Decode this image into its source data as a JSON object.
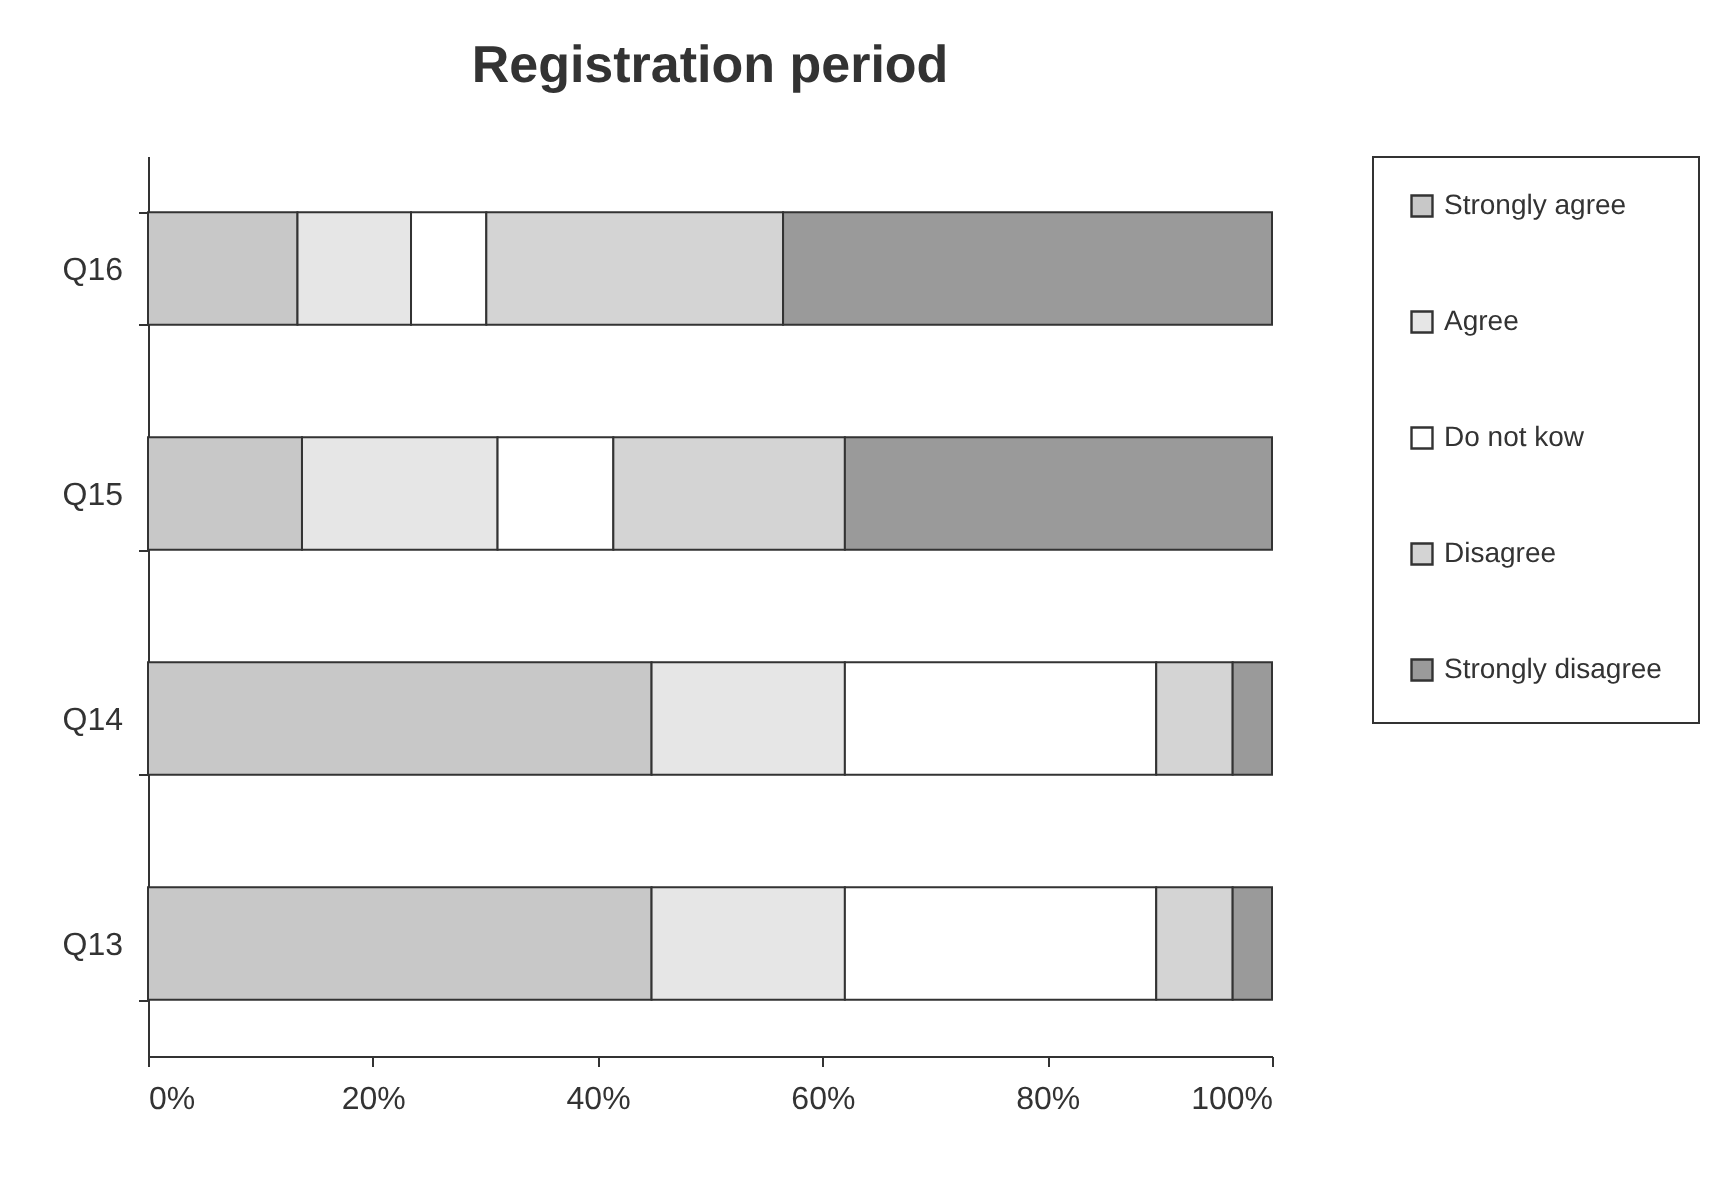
{
  "chart_data": {
    "type": "bar",
    "orientation": "horizontal",
    "stacked": true,
    "title": "Registration period",
    "categories": [
      "Q16",
      "Q15",
      "Q14",
      "Q13"
    ],
    "series": [
      {
        "name": "Strongly agree",
        "color": "#c8c8c8",
        "values": [
          13.3,
          13.7,
          44.8,
          44.8
        ]
      },
      {
        "name": "Agree",
        "color": "#e6e6e6",
        "values": [
          10.1,
          17.4,
          17.2,
          17.2
        ]
      },
      {
        "name": "Do not kow",
        "color": "#ffffff",
        "values": [
          6.7,
          10.3,
          27.7,
          27.7
        ]
      },
      {
        "name": "Disagree",
        "color": "#d4d4d4",
        "values": [
          26.4,
          20.6,
          6.8,
          6.8
        ]
      },
      {
        "name": "Strongly disagree",
        "color": "#9a9a9a",
        "values": [
          43.5,
          38.0,
          3.5,
          3.5
        ]
      }
    ],
    "xlim": [
      0,
      100
    ],
    "xticks": [
      {
        "value": 0,
        "label": "0%"
      },
      {
        "value": 20,
        "label": "20%"
      },
      {
        "value": 40,
        "label": "40%"
      },
      {
        "value": 60,
        "label": "60%"
      },
      {
        "value": 80,
        "label": "80%"
      },
      {
        "value": 100,
        "label": "100%"
      }
    ],
    "legend": "right",
    "grid": false
  }
}
